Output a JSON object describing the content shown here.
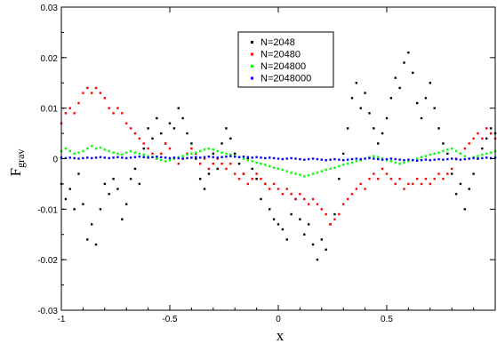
{
  "chart_data": {
    "type": "scatter",
    "xlabel": "x",
    "ylabel": "F",
    "ylabel_sub": "grav",
    "xlim": [
      -1,
      1
    ],
    "ylim": [
      -0.03,
      0.03
    ],
    "x_ticks": [
      {
        "value": -1,
        "label": "-1"
      },
      {
        "value": -0.5,
        "label": "-0.5"
      },
      {
        "value": 0,
        "label": "0"
      },
      {
        "value": 0.5,
        "label": "0.5"
      }
    ],
    "y_ticks": [
      {
        "value": -0.03,
        "label": "-0.03"
      },
      {
        "value": -0.02,
        "label": "-0.02"
      },
      {
        "value": -0.01,
        "label": "-0.01"
      },
      {
        "value": 0,
        "label": "0"
      },
      {
        "value": 0.01,
        "label": "0.01"
      },
      {
        "value": 0.02,
        "label": "0.02"
      },
      {
        "value": 0.03,
        "label": "0.03"
      }
    ],
    "grid": false,
    "legend_position": "top-center",
    "series": [
      {
        "name": "N=2048",
        "color": "#000000",
        "x": [
          -1.0,
          -0.98,
          -0.96,
          -0.94,
          -0.92,
          -0.9,
          -0.88,
          -0.86,
          -0.84,
          -0.82,
          -0.8,
          -0.78,
          -0.76,
          -0.74,
          -0.72,
          -0.7,
          -0.68,
          -0.66,
          -0.64,
          -0.62,
          -0.6,
          -0.58,
          -0.56,
          -0.54,
          -0.52,
          -0.5,
          -0.48,
          -0.46,
          -0.44,
          -0.42,
          -0.4,
          -0.38,
          -0.36,
          -0.34,
          -0.32,
          -0.3,
          -0.28,
          -0.26,
          -0.24,
          -0.22,
          -0.2,
          -0.18,
          -0.16,
          -0.14,
          -0.12,
          -0.1,
          -0.08,
          -0.06,
          -0.04,
          -0.02,
          0.0,
          0.02,
          0.04,
          0.06,
          0.08,
          0.1,
          0.12,
          0.14,
          0.16,
          0.18,
          0.2,
          0.22,
          0.24,
          0.26,
          0.28,
          0.3,
          0.32,
          0.34,
          0.36,
          0.38,
          0.4,
          0.42,
          0.44,
          0.46,
          0.48,
          0.5,
          0.52,
          0.54,
          0.56,
          0.58,
          0.6,
          0.62,
          0.64,
          0.66,
          0.68,
          0.7,
          0.72,
          0.74,
          0.76,
          0.78,
          0.8,
          0.82,
          0.84,
          0.86,
          0.88,
          0.9,
          0.92,
          0.94,
          0.96,
          0.98,
          1.0
        ],
        "y": [
          -0.005,
          -0.008,
          -0.006,
          -0.01,
          -0.003,
          -0.009,
          -0.016,
          -0.013,
          -0.017,
          -0.01,
          -0.005,
          -0.007,
          -0.004,
          -0.006,
          -0.012,
          -0.009,
          -0.004,
          -0.002,
          -0.005,
          0.002,
          0.006,
          0.004,
          0.008,
          0.005,
          0.003,
          0.007,
          0.006,
          0.01,
          0.008,
          0.005,
          0.003,
          0.0,
          -0.004,
          -0.006,
          -0.003,
          0.001,
          -0.002,
          0.003,
          0.006,
          0.004,
          0.001,
          -0.001,
          -0.003,
          0.0,
          -0.002,
          -0.004,
          -0.008,
          -0.005,
          -0.01,
          -0.012,
          -0.013,
          -0.014,
          -0.016,
          -0.011,
          -0.008,
          -0.012,
          -0.015,
          -0.013,
          -0.017,
          -0.02,
          -0.016,
          -0.018,
          -0.013,
          -0.011,
          -0.004,
          0.001,
          0.006,
          0.012,
          0.015,
          0.01,
          0.013,
          0.009,
          0.006,
          0.003,
          0.005,
          0.008,
          0.012,
          0.016,
          0.014,
          0.019,
          0.021,
          0.017,
          0.011,
          0.008,
          0.012,
          0.015,
          0.01,
          0.006,
          0.003,
          0.001,
          -0.003,
          -0.007,
          -0.005,
          -0.01,
          -0.006,
          -0.003,
          0.0,
          0.002,
          0.004,
          0.006,
          0.005
        ]
      },
      {
        "name": "N=20480",
        "color": "#ff0000",
        "x": [
          -1.0,
          -0.98,
          -0.96,
          -0.94,
          -0.92,
          -0.9,
          -0.88,
          -0.86,
          -0.84,
          -0.82,
          -0.8,
          -0.78,
          -0.76,
          -0.74,
          -0.72,
          -0.7,
          -0.68,
          -0.66,
          -0.64,
          -0.62,
          -0.6,
          -0.58,
          -0.56,
          -0.54,
          -0.52,
          -0.5,
          -0.48,
          -0.46,
          -0.44,
          -0.42,
          -0.4,
          -0.38,
          -0.36,
          -0.34,
          -0.32,
          -0.3,
          -0.28,
          -0.26,
          -0.24,
          -0.22,
          -0.2,
          -0.18,
          -0.16,
          -0.14,
          -0.12,
          -0.1,
          -0.08,
          -0.06,
          -0.04,
          -0.02,
          0.0,
          0.02,
          0.04,
          0.06,
          0.08,
          0.1,
          0.12,
          0.14,
          0.16,
          0.18,
          0.2,
          0.22,
          0.24,
          0.26,
          0.28,
          0.3,
          0.32,
          0.34,
          0.36,
          0.38,
          0.4,
          0.42,
          0.44,
          0.46,
          0.48,
          0.5,
          0.52,
          0.54,
          0.56,
          0.58,
          0.6,
          0.62,
          0.64,
          0.66,
          0.68,
          0.7,
          0.72,
          0.74,
          0.76,
          0.78,
          0.8,
          0.82,
          0.84,
          0.86,
          0.88,
          0.9,
          0.92,
          0.94,
          0.96,
          0.98,
          1.0
        ],
        "y": [
          0.007,
          0.009,
          0.01,
          0.009,
          0.011,
          0.013,
          0.014,
          0.013,
          0.014,
          0.013,
          0.012,
          0.01,
          0.009,
          0.01,
          0.009,
          0.007,
          0.006,
          0.005,
          0.004,
          0.003,
          0.002,
          0.001,
          0.0,
          0.001,
          0.003,
          0.002,
          0.0,
          -0.001,
          0.0,
          0.001,
          0.002,
          0.001,
          -0.001,
          0.0,
          -0.002,
          -0.001,
          0.0,
          -0.001,
          -0.002,
          -0.001,
          -0.003,
          -0.004,
          -0.003,
          -0.005,
          -0.004,
          -0.003,
          -0.004,
          -0.005,
          -0.006,
          -0.005,
          -0.006,
          -0.007,
          -0.006,
          -0.007,
          -0.008,
          -0.007,
          -0.008,
          -0.009,
          -0.008,
          -0.009,
          -0.01,
          -0.011,
          -0.013,
          -0.012,
          -0.011,
          -0.009,
          -0.008,
          -0.007,
          -0.006,
          -0.005,
          -0.006,
          -0.004,
          -0.003,
          -0.004,
          -0.002,
          -0.003,
          -0.004,
          -0.005,
          -0.004,
          -0.006,
          -0.005,
          -0.005,
          -0.004,
          -0.005,
          -0.004,
          -0.005,
          -0.004,
          -0.003,
          -0.004,
          -0.003,
          -0.002,
          0.0,
          0.001,
          0.002,
          0.003,
          0.004,
          0.005,
          0.004,
          0.006,
          0.005,
          0.004
        ]
      },
      {
        "name": "N=204800",
        "color": "#00ff00",
        "x": [
          -1.0,
          -0.98,
          -0.96,
          -0.94,
          -0.92,
          -0.9,
          -0.88,
          -0.86,
          -0.84,
          -0.82,
          -0.8,
          -0.78,
          -0.76,
          -0.74,
          -0.72,
          -0.7,
          -0.68,
          -0.66,
          -0.64,
          -0.62,
          -0.6,
          -0.58,
          -0.56,
          -0.54,
          -0.52,
          -0.5,
          -0.48,
          -0.46,
          -0.44,
          -0.42,
          -0.4,
          -0.38,
          -0.36,
          -0.34,
          -0.32,
          -0.3,
          -0.28,
          -0.26,
          -0.24,
          -0.22,
          -0.2,
          -0.18,
          -0.16,
          -0.14,
          -0.12,
          -0.1,
          -0.08,
          -0.06,
          -0.04,
          -0.02,
          0.0,
          0.02,
          0.04,
          0.06,
          0.08,
          0.1,
          0.12,
          0.14,
          0.16,
          0.18,
          0.2,
          0.22,
          0.24,
          0.26,
          0.28,
          0.3,
          0.32,
          0.34,
          0.36,
          0.38,
          0.4,
          0.42,
          0.44,
          0.46,
          0.48,
          0.5,
          0.52,
          0.54,
          0.56,
          0.58,
          0.6,
          0.62,
          0.64,
          0.66,
          0.68,
          0.7,
          0.72,
          0.74,
          0.76,
          0.78,
          0.8,
          0.82,
          0.84,
          0.86,
          0.88,
          0.9,
          0.92,
          0.94,
          0.96,
          0.98,
          1.0
        ],
        "y": [
          0.0015,
          0.002,
          0.0015,
          0.001,
          0.0012,
          0.0015,
          0.002,
          0.0025,
          0.002,
          0.0022,
          0.0018,
          0.0015,
          0.0012,
          0.001,
          0.0008,
          0.0012,
          0.0015,
          0.0012,
          0.001,
          0.0008,
          0.0005,
          0.0003,
          0.0,
          -0.0003,
          -0.0005,
          -0.0003,
          0.0,
          0.0003,
          0.0005,
          0.0008,
          0.001,
          0.0012,
          0.0015,
          0.0018,
          0.002,
          0.0018,
          0.0015,
          0.0012,
          0.001,
          0.0008,
          0.0005,
          0.0003,
          0.0,
          -0.0003,
          -0.0005,
          -0.0008,
          -0.001,
          -0.0012,
          -0.0015,
          -0.0018,
          -0.002,
          -0.0022,
          -0.0025,
          -0.0028,
          -0.003,
          -0.0032,
          -0.0035,
          -0.0033,
          -0.003,
          -0.0028,
          -0.0025,
          -0.0022,
          -0.002,
          -0.0018,
          -0.0015,
          -0.0012,
          -0.001,
          -0.0008,
          -0.0005,
          -0.0003,
          0.0,
          0.0003,
          0.0005,
          0.0003,
          0.0,
          -0.0003,
          -0.0005,
          -0.0008,
          -0.001,
          -0.0008,
          -0.0005,
          -0.0003,
          0.0,
          0.0003,
          0.0005,
          0.0008,
          0.001,
          0.0012,
          0.0015,
          0.0018,
          0.002,
          0.0015,
          0.001,
          0.0005,
          0.0,
          0.0003,
          0.0005,
          0.0008,
          0.001,
          0.0012,
          0.0015
        ]
      },
      {
        "name": "N=2048000",
        "color": "#0000ff",
        "x": [
          -1.0,
          -0.98,
          -0.96,
          -0.94,
          -0.92,
          -0.9,
          -0.88,
          -0.86,
          -0.84,
          -0.82,
          -0.8,
          -0.78,
          -0.76,
          -0.74,
          -0.72,
          -0.7,
          -0.68,
          -0.66,
          -0.64,
          -0.62,
          -0.6,
          -0.58,
          -0.56,
          -0.54,
          -0.52,
          -0.5,
          -0.48,
          -0.46,
          -0.44,
          -0.42,
          -0.4,
          -0.38,
          -0.36,
          -0.34,
          -0.32,
          -0.3,
          -0.28,
          -0.26,
          -0.24,
          -0.22,
          -0.2,
          -0.18,
          -0.16,
          -0.14,
          -0.12,
          -0.1,
          -0.08,
          -0.06,
          -0.04,
          -0.02,
          0.0,
          0.02,
          0.04,
          0.06,
          0.08,
          0.1,
          0.12,
          0.14,
          0.16,
          0.18,
          0.2,
          0.22,
          0.24,
          0.26,
          0.28,
          0.3,
          0.32,
          0.34,
          0.36,
          0.38,
          0.4,
          0.42,
          0.44,
          0.46,
          0.48,
          0.5,
          0.52,
          0.54,
          0.56,
          0.58,
          0.6,
          0.62,
          0.64,
          0.66,
          0.68,
          0.7,
          0.72,
          0.74,
          0.76,
          0.78,
          0.8,
          0.82,
          0.84,
          0.86,
          0.88,
          0.9,
          0.92,
          0.94,
          0.96,
          0.98,
          1.0
        ],
        "y": [
          0.0002,
          0.0001,
          0.0002,
          0.0001,
          0.0,
          0.0001,
          0.0002,
          0.0001,
          0.0002,
          0.0003,
          0.0002,
          0.0001,
          0.0002,
          0.0003,
          0.0002,
          0.0001,
          0.0002,
          0.0003,
          0.0004,
          0.0003,
          0.0002,
          0.0003,
          0.0004,
          0.0003,
          0.0002,
          0.0001,
          0.0002,
          0.0001,
          0.0,
          0.0001,
          0.0002,
          0.0003,
          0.0002,
          0.0003,
          0.0004,
          0.0003,
          0.0002,
          0.0003,
          0.0004,
          0.0005,
          0.0004,
          0.0003,
          0.0004,
          0.0003,
          0.0002,
          0.0003,
          0.0002,
          0.0001,
          0.0002,
          0.0001,
          0.0,
          -0.0001,
          0.0,
          0.0001,
          0.0,
          -0.0001,
          -0.0002,
          -0.0001,
          0.0,
          -0.0001,
          -0.0002,
          -0.0003,
          -0.0002,
          -0.0001,
          -0.0002,
          -0.0003,
          -0.0002,
          -0.0001,
          0.0,
          -0.0001,
          0.0,
          0.0001,
          0.0,
          -0.0001,
          -0.0002,
          -0.0001,
          0.0,
          -0.0001,
          -0.0002,
          -0.0003,
          -0.0002,
          -0.0003,
          -0.0004,
          -0.0003,
          -0.0002,
          -0.0003,
          -0.0002,
          -0.0001,
          -0.0002,
          -0.0001,
          0.0,
          -0.0001,
          -0.0002,
          -0.0001,
          0.0,
          0.0001,
          0.0,
          0.0001,
          0.0002,
          0.0001,
          0.0002
        ]
      }
    ]
  }
}
